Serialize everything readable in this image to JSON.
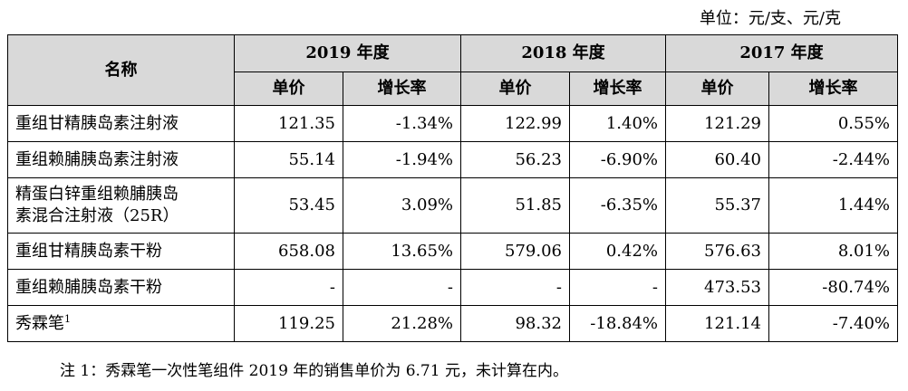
{
  "unit_label": "单位：元/支、元/克",
  "headers": {
    "name": "名称",
    "years": [
      "2019 年度",
      "2018 年度",
      "2017 年度"
    ],
    "unit_price": "单价",
    "growth_rate": "增长率"
  },
  "rows": [
    {
      "name": "重组甘精胰岛素注射液",
      "sup": "",
      "v": [
        "121.35",
        "-1.34%",
        "122.99",
        "1.40%",
        "121.29",
        "0.55%"
      ]
    },
    {
      "name": "重组赖脯胰岛素注射液",
      "sup": "",
      "v": [
        "55.14",
        "-1.94%",
        "56.23",
        "-6.90%",
        "60.40",
        "-2.44%"
      ]
    },
    {
      "name_line1": "精蛋白锌重组赖脯胰岛",
      "name_line2": "素混合注射液（25R）",
      "v": [
        "53.45",
        "3.09%",
        "51.85",
        "-6.35%",
        "55.37",
        "1.44%"
      ]
    },
    {
      "name": "重组甘精胰岛素干粉",
      "sup": "",
      "v": [
        "658.08",
        "13.65%",
        "579.06",
        "0.42%",
        "576.63",
        "8.01%"
      ]
    },
    {
      "name": "重组赖脯胰岛素干粉",
      "sup": "",
      "v": [
        "-",
        "-",
        "-",
        "-",
        "473.53",
        "-80.74%"
      ]
    },
    {
      "name": "秀霖笔",
      "sup": "1",
      "v": [
        "119.25",
        "21.28%",
        "98.32",
        "-18.84%",
        "121.14",
        "-7.40%"
      ]
    }
  ],
  "note": "注 1：秀霖笔一次性笔组件 2019 年的销售单价为 6.71 元，未计算在内。"
}
